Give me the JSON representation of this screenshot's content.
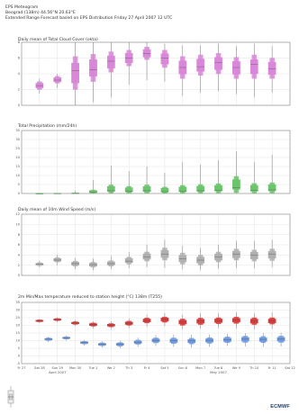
{
  "header": {
    "line1": "EPS Meteogram",
    "line2": "Beograd (138m) 44.56°N 20.63°E",
    "line3": "Extended Range Forecast based on EPS Distribution Friday 27 April 2007 12 UTC"
  },
  "colors": {
    "cloud": "#d987d9",
    "precip": "#6cc46c",
    "wind": "#b0b0b0",
    "temp_max": "#d93a3a",
    "temp_min": "#6f9ae0",
    "grid": "#dcdcdc",
    "axis": "#888888"
  },
  "x_axis": {
    "days": [
      "Fr 27",
      "Sat 28",
      "Sun 29",
      "Mon 30",
      "Tue 1",
      "We 2",
      "Th 3",
      "Fr 4",
      "Sat 5",
      "Sun 6",
      "Mon 7",
      "Tue 8",
      "We 9",
      "Th 10",
      "Fr 11",
      "Sat 12"
    ],
    "highlight_days": [
      "Sun 29",
      "Sun 6"
    ],
    "months": [
      {
        "label": "April 2007",
        "at_index": 2
      },
      {
        "label": "May 2007",
        "at_index": 11
      }
    ]
  },
  "logo_text": "ECMWF",
  "chart_data": [
    {
      "type": "box",
      "title": "Daily mean of Total Cloud Cover (okta)",
      "ylim": [
        0,
        8
      ],
      "yticks": [
        0,
        2,
        4,
        6,
        8
      ],
      "series": [
        {
          "name": "",
          "x": [
            1,
            2,
            3,
            4,
            5,
            6,
            7,
            8,
            9,
            10,
            11,
            12,
            13,
            14
          ],
          "values": [
            [
              1.5,
              2.0,
              2.5,
              3.0,
              3.4
            ],
            [
              2.2,
              2.8,
              3.2,
              3.7,
              4.0
            ],
            [
              0,
              2.0,
              4.4,
              6.2,
              8
            ],
            [
              0.4,
              3.0,
              4.5,
              6.5,
              8
            ],
            [
              1.0,
              4.2,
              5.6,
              6.8,
              8
            ],
            [
              2.6,
              5.0,
              6.0,
              7.0,
              8
            ],
            [
              3.2,
              5.8,
              6.6,
              7.4,
              8
            ],
            [
              3.0,
              4.8,
              6.0,
              7.0,
              7.8
            ],
            [
              1.2,
              3.4,
              4.8,
              6.2,
              7.6
            ],
            [
              1.6,
              3.8,
              4.9,
              6.4,
              7.6
            ],
            [
              1.8,
              4.0,
              5.4,
              6.6,
              7.8
            ],
            [
              1.4,
              3.4,
              4.8,
              6.1,
              7.5
            ],
            [
              1.0,
              3.4,
              5.2,
              6.4,
              7.8
            ],
            [
              1.6,
              3.4,
              4.6,
              6.0,
              7.5
            ]
          ]
        }
      ]
    },
    {
      "type": "box",
      "title": "Total Precipitation (mm/24h)",
      "ylim": [
        0,
        35
      ],
      "yticks": [
        0,
        5,
        10,
        15,
        20,
        25,
        30,
        35
      ],
      "series": [
        {
          "name": "",
          "x": [
            1,
            2,
            3,
            4,
            5,
            6,
            7,
            8,
            9,
            10,
            11,
            12,
            13,
            14
          ],
          "values": [
            [
              0,
              0,
              0,
              0,
              0.1
            ],
            [
              0,
              0,
              0,
              0.1,
              0.3
            ],
            [
              0,
              0,
              0,
              0.4,
              1.6
            ],
            [
              0,
              0.1,
              0.6,
              2.0,
              7.5
            ],
            [
              0,
              0.2,
              1.5,
              4.8,
              15.5
            ],
            [
              0,
              0.1,
              1.2,
              4.0,
              12.5
            ],
            [
              0,
              0.1,
              1.5,
              4.8,
              15.0
            ],
            [
              0,
              0.1,
              1.0,
              3.6,
              11.5
            ],
            [
              0,
              0.1,
              1.2,
              4.5,
              17.5
            ],
            [
              0,
              0.2,
              1.5,
              5.0,
              16.0
            ],
            [
              0,
              0.4,
              1.8,
              5.5,
              18.5
            ],
            [
              0,
              0.5,
              3.2,
              9.5,
              23.5
            ],
            [
              0,
              0.2,
              1.8,
              5.6,
              17.5
            ],
            [
              0,
              0.3,
              2.0,
              6.0,
              21.5
            ]
          ]
        }
      ]
    },
    {
      "type": "box",
      "title": "Daily mean of 10m Wind Speed (m/s)",
      "ylim": [
        0,
        12
      ],
      "yticks": [
        0,
        2,
        4,
        6,
        8,
        10,
        12
      ],
      "series": [
        {
          "name": "",
          "x": [
            1,
            2,
            3,
            4,
            5,
            6,
            7,
            8,
            9,
            10,
            11,
            12,
            13,
            14
          ],
          "values": [
            [
              1.6,
              1.9,
              2.2,
              2.5,
              2.9
            ],
            [
              2.0,
              2.6,
              3.0,
              3.5,
              4.0
            ],
            [
              1.2,
              1.8,
              2.3,
              2.8,
              3.4
            ],
            [
              1.0,
              1.6,
              2.1,
              2.6,
              3.3
            ],
            [
              1.2,
              1.8,
              2.3,
              2.9,
              3.8
            ],
            [
              1.4,
              2.2,
              2.8,
              3.6,
              4.6
            ],
            [
              1.6,
              2.8,
              3.6,
              4.6,
              6.0
            ],
            [
              1.5,
              3.0,
              4.2,
              5.4,
              7.0
            ],
            [
              1.2,
              2.2,
              3.3,
              4.4,
              5.8
            ],
            [
              1.0,
              2.0,
              3.0,
              4.0,
              5.4
            ],
            [
              1.3,
              2.6,
              3.6,
              4.6,
              6.0
            ],
            [
              1.5,
              3.0,
              4.2,
              5.2,
              6.8
            ],
            [
              1.4,
              2.8,
              4.0,
              5.0,
              6.8
            ],
            [
              1.6,
              2.9,
              4.2,
              5.2,
              7.0
            ]
          ]
        }
      ]
    },
    {
      "type": "box",
      "title": "2m Min/Max temperature reduced to station height (°C) 138m (T255)",
      "ylim": [
        -5,
        35
      ],
      "yticks": [
        -5,
        0,
        5,
        10,
        15,
        20,
        25,
        30,
        35
      ],
      "series": [
        {
          "name": "",
          "x": [
            1,
            2,
            3,
            4,
            5,
            6,
            7,
            8,
            9,
            10,
            11,
            12,
            13,
            14
          ],
          "values": [
            [
              21.5,
              22.3,
              23.0,
              23.6,
              24.2
            ],
            [
              22.0,
              23.0,
              23.8,
              24.5,
              25.2
            ],
            [
              19.5,
              20.6,
              21.5,
              22.4,
              23.4
            ],
            [
              18.0,
              19.4,
              20.5,
              21.6,
              22.6
            ],
            [
              17.6,
              19.0,
              20.2,
              21.2,
              22.5
            ],
            [
              18.2,
              20.0,
              21.4,
              22.8,
              24.5
            ],
            [
              19.0,
              21.5,
              23.2,
              24.8,
              27.0
            ],
            [
              19.5,
              22.0,
              24.0,
              25.5,
              28.0
            ],
            [
              17.5,
              20.0,
              22.2,
              24.2,
              27.0
            ],
            [
              17.8,
              20.5,
              23.0,
              24.8,
              28.0
            ],
            [
              18.2,
              21.0,
              23.0,
              25.0,
              28.0
            ],
            [
              18.0,
              21.2,
              23.5,
              25.5,
              28.5
            ],
            [
              17.5,
              20.5,
              23.0,
              25.0,
              28.0
            ],
            [
              17.6,
              20.8,
              23.0,
              25.0,
              28.5
            ]
          ]
        },
        {
          "name": "",
          "x": [
            1.5,
            2.5,
            3.5,
            4.5,
            5.5,
            6.5,
            7.5,
            8.5,
            9.5,
            10.5,
            11.5,
            12.5,
            13.5,
            14.5
          ],
          "values": [
            [
              9.0,
              10.0,
              11.0,
              11.8,
              12.6
            ],
            [
              10.0,
              11.0,
              11.8,
              12.6,
              13.2
            ],
            [
              6.8,
              7.8,
              8.8,
              9.6,
              10.4
            ],
            [
              5.4,
              6.6,
              7.6,
              8.6,
              9.6
            ],
            [
              5.0,
              6.4,
              7.6,
              8.8,
              10.0
            ],
            [
              6.0,
              7.6,
              9.0,
              10.4,
              12.0
            ],
            [
              6.5,
              8.5,
              10.2,
              11.8,
              13.5
            ],
            [
              6.0,
              8.0,
              10.0,
              11.8,
              14.0
            ],
            [
              5.5,
              7.8,
              9.8,
              11.6,
              13.8
            ],
            [
              6.0,
              8.2,
              10.2,
              12.0,
              14.0
            ],
            [
              6.5,
              8.6,
              10.6,
              12.5,
              14.5
            ],
            [
              6.2,
              8.8,
              11.0,
              13.0,
              15.0
            ],
            [
              6.0,
              8.6,
              10.8,
              12.8,
              15.0
            ],
            [
              6.2,
              8.8,
              11.0,
              13.0,
              15.2
            ]
          ]
        }
      ]
    }
  ]
}
